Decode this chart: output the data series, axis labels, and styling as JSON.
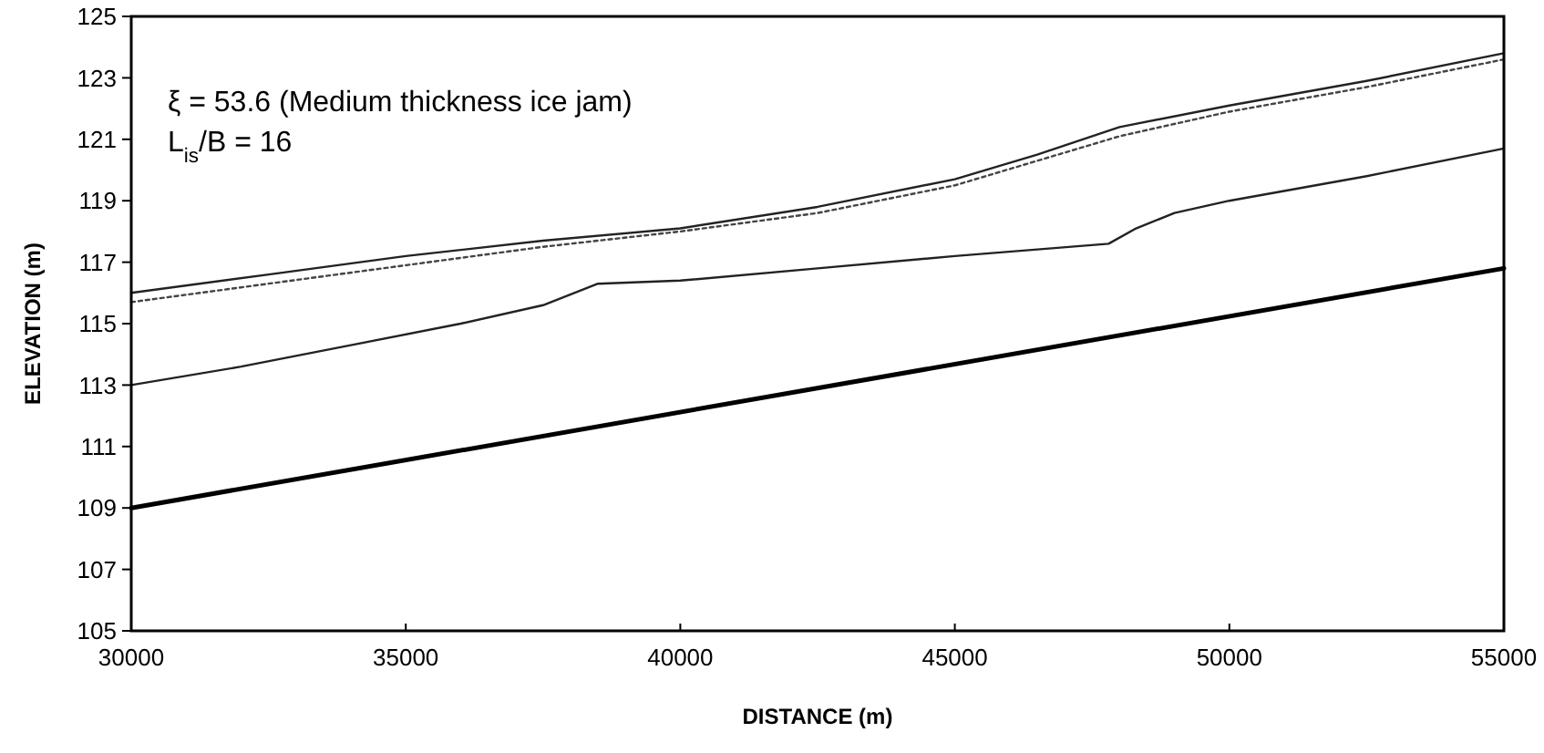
{
  "chart_data": {
    "type": "line",
    "xlabel": "DISTANCE (m)",
    "ylabel": "ELEVATION (m)",
    "annotations": [
      "ξ = 53.6 (Medium thickness ice jam)",
      "L$_{is}$/B = 16"
    ],
    "xlim": [
      30000,
      55000
    ],
    "xticks": [
      30000,
      35000,
      40000,
      45000,
      50000,
      55000
    ],
    "ylim": [
      105,
      125
    ],
    "yticks": [
      105,
      107,
      109,
      111,
      113,
      115,
      117,
      119,
      121,
      123,
      125
    ],
    "grid": false,
    "series": [
      {
        "color": "#222222",
        "line_style": "solid",
        "x": [
          30000,
          32500,
          35000,
          37500,
          40000,
          42500,
          45000,
          46500,
          48000,
          50000,
          52500,
          55000
        ],
        "values": [
          116.0,
          116.6,
          117.2,
          117.7,
          118.1,
          118.8,
          119.7,
          120.5,
          121.4,
          122.1,
          122.9,
          123.8
        ]
      },
      {
        "color": "#444444",
        "line_style": "dotted",
        "x": [
          30000,
          32500,
          35000,
          37500,
          40000,
          42500,
          45000,
          46500,
          48000,
          50000,
          52500,
          55000
        ],
        "values": [
          115.7,
          116.3,
          116.9,
          117.5,
          118.0,
          118.6,
          119.5,
          120.3,
          121.1,
          121.9,
          122.7,
          123.6
        ]
      },
      {
        "color": "#222222",
        "line_style": "solid",
        "x": [
          30000,
          32000,
          34000,
          36000,
          37500,
          38500,
          40000,
          42500,
          45000,
          47800,
          48300,
          49000,
          50000,
          52500,
          55000
        ],
        "values": [
          113.0,
          113.6,
          114.3,
          115.0,
          115.6,
          116.3,
          116.4,
          116.8,
          117.2,
          117.6,
          118.1,
          118.6,
          119.0,
          119.8,
          120.7
        ]
      },
      {
        "color": "#000000",
        "line_style": "solid",
        "x": [
          30000,
          55000
        ],
        "values": [
          109.0,
          116.8
        ]
      }
    ]
  }
}
